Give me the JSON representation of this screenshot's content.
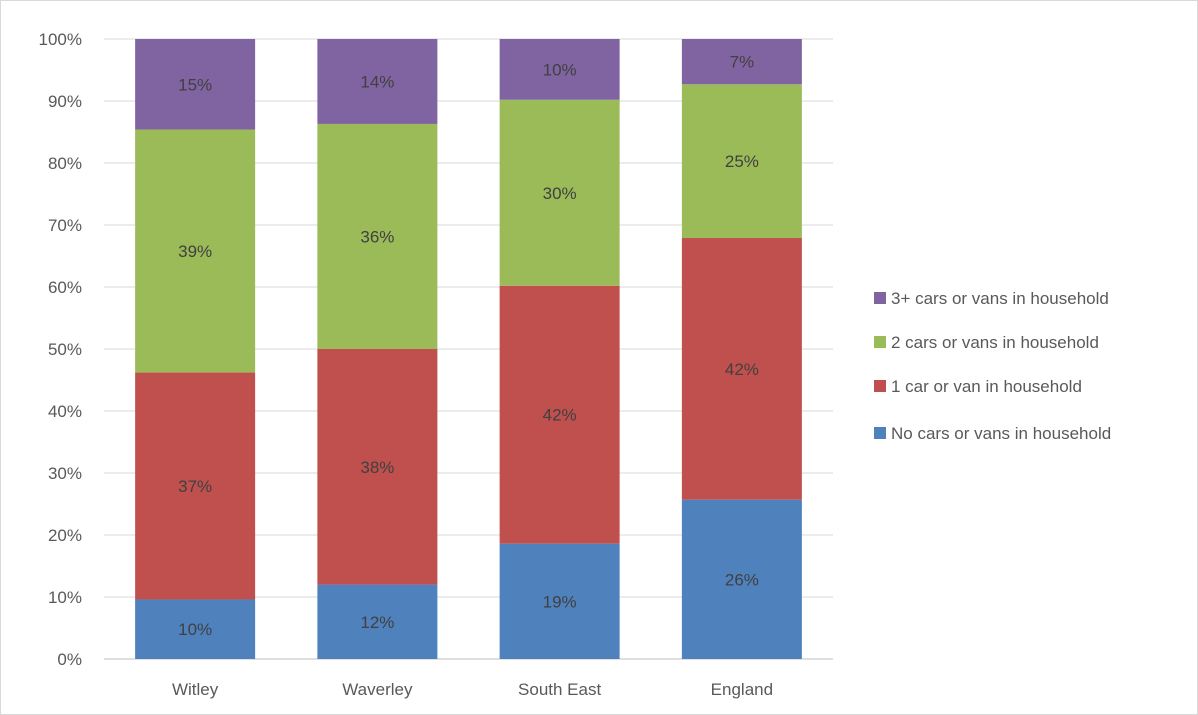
{
  "chart_data": {
    "type": "bar",
    "stacked": true,
    "categories": [
      "Witley",
      "Waverley",
      "South East",
      "England"
    ],
    "series": [
      {
        "name": "No cars or vans in household",
        "color": "#4f81bd",
        "values": [
          0.096,
          0.12,
          0.186,
          0.257
        ],
        "labels": [
          "10%",
          "12%",
          "19%",
          "26%"
        ]
      },
      {
        "name": "1 car or van in household",
        "color": "#c0504d",
        "values": [
          0.366,
          0.38,
          0.416,
          0.422
        ],
        "labels": [
          "37%",
          "38%",
          "42%",
          "42%"
        ]
      },
      {
        "name": "2 cars or vans in household",
        "color": "#9bbb59",
        "values": [
          0.392,
          0.363,
          0.3,
          0.248
        ],
        "labels": [
          "39%",
          "36%",
          "30%",
          "25%"
        ]
      },
      {
        "name": "3+ cars or vans in household",
        "color": "#8064a2",
        "values": [
          0.146,
          0.137,
          0.098,
          0.073
        ],
        "labels": [
          "15%",
          "14%",
          "10%",
          "7%"
        ]
      }
    ],
    "yticks": [
      "0%",
      "10%",
      "20%",
      "30%",
      "40%",
      "50%",
      "60%",
      "70%",
      "80%",
      "90%",
      "100%"
    ],
    "ylim": [
      0,
      1
    ],
    "grid": true,
    "legend_position": "right",
    "title": "",
    "xlabel": "",
    "ylabel": ""
  }
}
